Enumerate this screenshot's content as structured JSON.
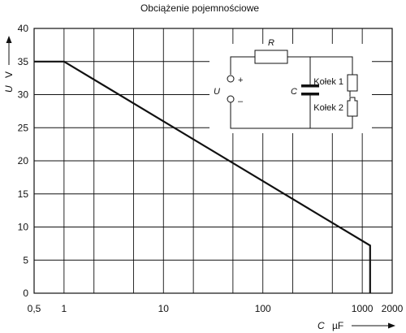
{
  "chart_data": {
    "type": "line",
    "title": "Obciążenie pojemnościowe",
    "xlabel": {
      "symbol": "C",
      "unit": "µF"
    },
    "ylabel": {
      "symbol": "U",
      "unit": "V"
    },
    "x_scale": "log",
    "xlim": [
      0.5,
      2000
    ],
    "ylim": [
      0,
      40
    ],
    "x_tick_labels": [
      {
        "value": 0.5,
        "label": "0,5"
      },
      {
        "value": 1,
        "label": "1"
      },
      {
        "value": 10,
        "label": "10"
      },
      {
        "value": 100,
        "label": "100"
      },
      {
        "value": 1000,
        "label": "1000"
      },
      {
        "value": 2000,
        "label": "2000"
      }
    ],
    "x_gridlines": [
      0.5,
      1,
      2,
      5,
      10,
      20,
      50,
      100,
      200,
      500,
      1000,
      2000
    ],
    "y_ticks": [
      0,
      5,
      10,
      15,
      20,
      25,
      30,
      35,
      40
    ],
    "grid": true,
    "series": [
      {
        "points": [
          {
            "x": 0.5,
            "y": 35
          },
          {
            "x": 1,
            "y": 35
          },
          {
            "x": 1200,
            "y": 7.2
          },
          {
            "x": 1200,
            "y": 0
          }
        ]
      }
    ],
    "inset_circuit": {
      "resistor_label": "R",
      "source_label": "U",
      "plus_sign": "+",
      "minus_sign": "–",
      "capacitor_label": "C",
      "pin1_label": "Kołek 1",
      "pin2_label": "Kołek 2"
    }
  }
}
